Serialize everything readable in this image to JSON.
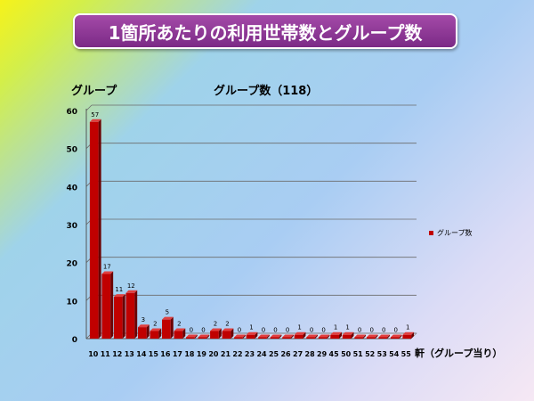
{
  "header": {
    "title": "1箇所あたりの利用世帯数とグループ数"
  },
  "chart_data": {
    "type": "bar",
    "title": "グループ数（118）",
    "ylabel": "グループ",
    "xlabel": "軒（グループ当り）",
    "legend_label": "グループ数",
    "legend_position": "right",
    "categories": [
      "10",
      "11",
      "12",
      "13",
      "14",
      "15",
      "16",
      "17",
      "18",
      "19",
      "20",
      "21",
      "22",
      "23",
      "24",
      "25",
      "26",
      "27",
      "28",
      "29",
      "45",
      "50",
      "51",
      "52",
      "53",
      "54",
      "55"
    ],
    "values": [
      57,
      17,
      11,
      12,
      3,
      2,
      5,
      2,
      0,
      0,
      2,
      2,
      0,
      1,
      0,
      0,
      0,
      1,
      0,
      0,
      1,
      1,
      0,
      0,
      0,
      0,
      1
    ],
    "ylim": [
      0,
      60
    ],
    "yticks": [
      0,
      10,
      20,
      30,
      40,
      50,
      60
    ],
    "grid": true,
    "bar_color": "#c00000"
  }
}
